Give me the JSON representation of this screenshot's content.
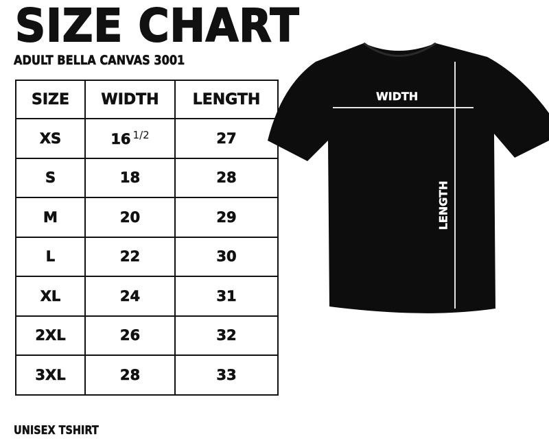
{
  "title": "SIZE CHART",
  "subtitle": "ADULT BELLA CANVAS 3001",
  "footer": "UNISEX TSHIRT",
  "table": {
    "headers": [
      "SIZE",
      "WIDTH",
      "LENGTH"
    ],
    "rows": [
      {
        "size": "XS",
        "width": "16",
        "width_fraction": "1/2",
        "length": "27"
      },
      {
        "size": "S",
        "width": "18",
        "length": "28"
      },
      {
        "size": "M",
        "width": "20",
        "length": "29"
      },
      {
        "size": "L",
        "width": "22",
        "length": "30"
      },
      {
        "size": "XL",
        "width": "24",
        "length": "31"
      },
      {
        "size": "2XL",
        "width": "26",
        "length": "32"
      },
      {
        "size": "3XL",
        "width": "28",
        "length": "33"
      }
    ]
  },
  "diagram": {
    "width_label": "WIDTH",
    "length_label": "LENGTH",
    "shirt_color": "#0d0d0d"
  }
}
